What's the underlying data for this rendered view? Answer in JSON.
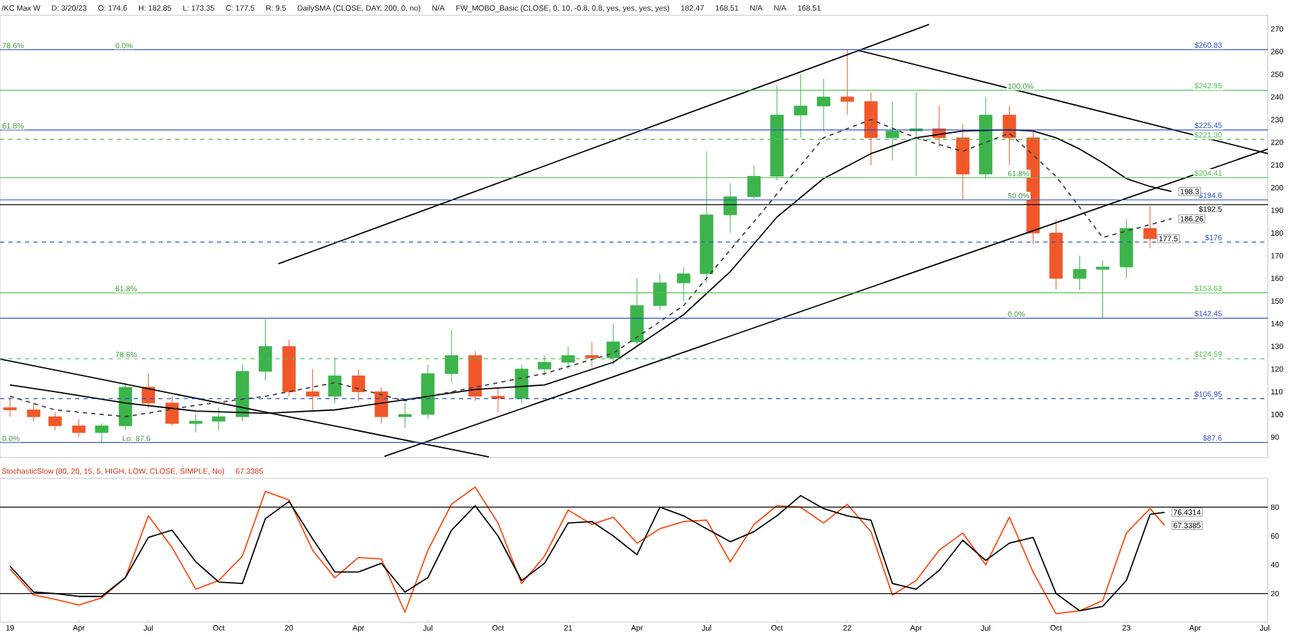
{
  "chart_data": [
    {
      "type": "candlestick",
      "title": "/KC Max W",
      "annotations": [
        "D: 3/20/23",
        "O: 174.6",
        "H: 182.85",
        "L: 173.35",
        "C: 177.5",
        "R: 9.5",
        "DailySMA (CLOSE, DAY, 200, 0, no)",
        "N/A",
        "FW_MOBO_Basic (CLOSE, 0, 10, -0.8, 0.8, yes, yes, yes, yes)",
        "182.47",
        "168.51",
        "N/A",
        "N/A",
        {
          "text": "78.6%",
          "x": "2018-12-20",
          "y": 260.83
        },
        {
          "text": "0.0%",
          "x": "2019-05-17",
          "y": 260.83
        },
        {
          "text": "61.8%",
          "x": "2018-12-20",
          "y": 225.45
        },
        {
          "text": "61.8%",
          "x": "2019-05-17",
          "y": 153.63
        },
        {
          "text": "78.6%",
          "x": "2019-05-17",
          "y": 124.59
        },
        {
          "text": "0.0%",
          "x": "2018-12-20",
          "y": 87.6
        },
        {
          "text": "Lo: 87.6",
          "x": "2019-05-26",
          "y": 87.6
        },
        {
          "text": "100.0%",
          "x": "2022-07-28",
          "y": 242.95
        },
        {
          "text": "61.8%",
          "x": "2022-07-28",
          "y": 204.41
        },
        {
          "text": "50.0%",
          "x": "2022-07-28",
          "y": 194.6
        },
        {
          "text": "0.0%",
          "x": "2022-07-28",
          "y": 142.45
        },
        {
          "text": "198.3",
          "x": "2023-03",
          "y": 198.3
        },
        {
          "text": "186.26",
          "x": "2023-03",
          "y": 186.26
        },
        {
          "text": "177.5",
          "x": "2023-02",
          "y": 177.5
        },
        "168.51"
      ],
      "x": [
        "2019-01",
        "2019-02",
        "2019-03",
        "2019-04",
        "2019-05",
        "2019-06",
        "2019-07",
        "2019-08",
        "2019-09",
        "2019-10",
        "2019-11",
        "2019-12",
        "2020-01",
        "2020-02",
        "2020-03",
        "2020-04",
        "2020-05",
        "2020-06",
        "2020-07",
        "2020-08",
        "2020-09",
        "2020-10",
        "2020-11",
        "2020-12",
        "2021-01",
        "2021-02",
        "2021-03",
        "2021-04",
        "2021-05",
        "2021-06",
        "2021-07",
        "2021-08",
        "2021-09",
        "2021-10",
        "2021-11",
        "2021-12",
        "2022-01",
        "2022-02",
        "2022-03",
        "2022-04",
        "2022-05",
        "2022-06",
        "2022-07",
        "2022-08",
        "2022-09",
        "2022-10",
        "2022-11",
        "2022-12",
        "2023-01",
        "2023-02"
      ],
      "ohlc": [
        [
          103,
          107,
          99,
          102
        ],
        [
          102,
          105,
          97,
          99
        ],
        [
          99,
          101,
          93,
          95
        ],
        [
          95,
          98,
          90,
          92
        ],
        [
          92,
          96,
          87.6,
          95
        ],
        [
          95,
          114,
          93,
          112
        ],
        [
          112,
          118,
          103,
          105
        ],
        [
          105,
          108,
          95,
          96
        ],
        [
          96,
          100,
          92,
          97
        ],
        [
          97,
          103,
          93,
          99
        ],
        [
          99,
          122,
          97,
          119
        ],
        [
          119,
          142,
          115,
          130
        ],
        [
          130,
          133,
          108,
          110
        ],
        [
          110,
          120,
          102,
          108
        ],
        [
          108,
          125,
          105,
          117
        ],
        [
          117,
          120,
          106,
          110
        ],
        [
          110,
          112,
          96,
          99
        ],
        [
          99,
          105,
          94,
          100
        ],
        [
          100,
          122,
          98,
          118
        ],
        [
          118,
          137,
          114,
          126
        ],
        [
          126,
          128,
          106,
          108
        ],
        [
          108,
          112,
          101,
          107
        ],
        [
          107,
          122,
          105,
          120
        ],
        [
          120,
          126,
          117,
          123
        ],
        [
          123,
          130,
          120,
          126
        ],
        [
          126,
          132,
          121,
          125
        ],
        [
          125,
          140,
          122,
          132
        ],
        [
          132,
          160,
          130,
          148
        ],
        [
          148,
          162,
          146,
          158
        ],
        [
          158,
          165,
          150,
          162
        ],
        [
          162,
          216,
          158,
          188
        ],
        [
          188,
          202,
          180,
          196
        ],
        [
          196,
          210,
          195,
          205
        ],
        [
          205,
          245,
          203,
          232
        ],
        [
          232,
          250,
          222,
          236
        ],
        [
          236,
          248,
          225,
          240
        ],
        [
          240,
          260.83,
          232,
          238
        ],
        [
          238,
          242,
          210,
          222
        ],
        [
          222,
          238,
          212,
          225
        ],
        [
          225,
          242,
          205,
          226
        ],
        [
          226,
          236,
          218,
          222
        ],
        [
          222,
          228,
          194.6,
          206
        ],
        [
          206,
          240,
          204,
          232
        ],
        [
          232,
          236,
          210,
          222
        ],
        [
          222,
          225,
          175,
          180
        ],
        [
          180,
          186,
          155,
          160
        ],
        [
          160,
          170,
          155,
          164
        ],
        [
          164,
          168,
          142.45,
          165
        ],
        [
          165,
          186,
          160,
          182
        ],
        [
          182,
          192,
          173.35,
          177.5
        ]
      ],
      "colors": [
        "#f0582a",
        "#f0582a",
        "#f0582a",
        "#f0582a",
        "#3cb44b",
        "#3cb44b",
        "#f0582a",
        "#f0582a",
        "#3cb44b",
        "#3cb44b",
        "#3cb44b",
        "#3cb44b",
        "#f0582a",
        "#f0582a",
        "#3cb44b",
        "#f0582a",
        "#f0582a",
        "#3cb44b",
        "#3cb44b",
        "#3cb44b",
        "#f0582a",
        "#f0582a",
        "#3cb44b",
        "#3cb44b",
        "#3cb44b",
        "#f0582a",
        "#3cb44b",
        "#3cb44b",
        "#3cb44b",
        "#3cb44b",
        "#3cb44b",
        "#3cb44b",
        "#3cb44b",
        "#3cb44b",
        "#3cb44b",
        "#3cb44b",
        "#f0582a",
        "#f0582a",
        "#3cb44b",
        "#3cb44b",
        "#f0582a",
        "#f0582a",
        "#3cb44b",
        "#f0582a",
        "#f0582a",
        "#f0582a",
        "#3cb44b",
        "#3cb44b",
        "#3cb44b",
        "#f0582a"
      ],
      "xlim": [
        "2018-12-19",
        "2023-07-05"
      ],
      "ylim": [
        81,
        276
      ],
      "yticks": [
        90,
        100,
        110,
        120,
        130,
        140,
        150,
        160,
        170,
        180,
        190,
        200,
        210,
        220,
        230,
        240,
        250,
        260,
        270
      ],
      "tick_labels": "y",
      "series": [
        {
          "type": "line",
          "color": "#000000",
          "x": [
            "2019-01",
            "2019-03",
            "2019-06",
            "2019-09",
            "2019-12",
            "2020-03",
            "2020-06",
            "2020-09",
            "2020-12",
            "2021-03",
            "2021-06",
            "2021-08",
            "2021-10",
            "2021-12",
            "2022-02",
            "2022-04",
            "2022-06",
            "2022-08",
            "2022-09",
            "2022-10",
            "2022-11",
            "2022-12",
            "2023-01",
            "2023-02",
            "2023-03"
          ],
          "values": [
            113,
            110,
            105,
            101.5,
            100.5,
            102,
            106.5,
            111,
            113,
            123,
            144,
            163,
            187,
            204,
            215,
            222,
            225,
            225.5,
            225,
            222,
            217,
            211,
            204,
            200.5,
            198.3
          ]
        },
        {
          "type": "line",
          "color": "#404040",
          "line_style": "dashed",
          "x": [
            "2019-01",
            "2019-03",
            "2019-06",
            "2019-09",
            "2019-12",
            "2020-03",
            "2020-06",
            "2020-09",
            "2020-12",
            "2021-03",
            "2021-06",
            "2021-09",
            "2021-12",
            "2022-02",
            "2022-04",
            "2022-06",
            "2022-08",
            "2022-10",
            "2022-12",
            "2023-03"
          ],
          "values": [
            108,
            102,
            99,
            104,
            108,
            114,
            106,
            112,
            118,
            127,
            148,
            185,
            222,
            230,
            222,
            216,
            224,
            205,
            178,
            186.26
          ]
        },
        {
          "type": "line",
          "color": "#000000",
          "x": [
            "2019-12-18",
            "2022-01-16",
            "2022-04-18"
          ],
          "values": [
            166.4,
            260.5,
            272
          ]
        },
        {
          "type": "line",
          "color": "#000000",
          "x": [
            "2020-05-05",
            "2023-07-05"
          ],
          "values": [
            81.5,
            217
          ]
        },
        {
          "type": "line",
          "color": "#000000",
          "x": [
            "2022-01-16",
            "2023-07-05"
          ],
          "values": [
            260.5,
            215
          ]
        },
        {
          "type": "line",
          "color": "#000000",
          "x": [
            "2018-12-19",
            "2020-09-19"
          ],
          "values": [
            124.4,
            81.3
          ]
        }
      ],
      "ref_lines": [
        {
          "axis": "y",
          "value": 260.83,
          "label": "$260.83",
          "color": "#2b4fc7"
        },
        {
          "axis": "y",
          "value": 242.95,
          "label": "$242.95",
          "color": "#4cbf4c"
        },
        {
          "axis": "y",
          "value": 225.45,
          "label": "$225.45",
          "color": "#2b4fc7"
        },
        {
          "axis": "y",
          "value": 221.3,
          "label": "$221.30",
          "color": "#4cbf4c",
          "line_style": "dashed"
        },
        {
          "axis": "y",
          "value": 204.41,
          "label": "$204.41",
          "color": "#4cbf4c"
        },
        {
          "axis": "y",
          "value": 194.6,
          "label": "$194.6",
          "color": "#2b4fc7"
        },
        {
          "axis": "y",
          "value": 192.5,
          "label": "$192.5",
          "color": "#000000"
        },
        {
          "axis": "y",
          "value": 176,
          "label": "$176",
          "color": "#2b4fc7",
          "line_style": "dashed"
        },
        {
          "axis": "y",
          "value": 153.63,
          "label": "$153.63",
          "color": "#4cbf4c"
        },
        {
          "axis": "y",
          "value": 142.45,
          "label": "$142.45",
          "color": "#2b4fc7"
        },
        {
          "axis": "y",
          "value": 124.59,
          "label": "$124.59",
          "color": "#4cbf4c",
          "line_style": "dashed"
        },
        {
          "axis": "y",
          "value": 106.95,
          "label": "$106.95",
          "color": "#2b4fc7",
          "line_style": "dashed"
        },
        {
          "axis": "y",
          "value": 87.6,
          "label": "$87.6",
          "color": "#2b4fc7"
        }
      ]
    },
    {
      "type": "line",
      "title": "StochasticSlow (80, 20, 15, 5, HIGH, LOW, CLOSE, SIMPLE, No)",
      "annotations": [
        "67.3385",
        {
          "text": "76.4314",
          "x": "2023-02-20",
          "y": 76.4314
        },
        {
          "text": "67.3385",
          "x": "2023-02-20",
          "y": 67.3385
        }
      ],
      "x": [
        "2019-01",
        "2019-02",
        "2019-03",
        "2019-04",
        "2019-05",
        "2019-06",
        "2019-07",
        "2019-08",
        "2019-09",
        "2019-10",
        "2019-11",
        "2019-12",
        "2020-01",
        "2020-02",
        "2020-03",
        "2020-04",
        "2020-05",
        "2020-06",
        "2020-07",
        "2020-08",
        "2020-09",
        "2020-10",
        "2020-11",
        "2020-12",
        "2021-01",
        "2021-02",
        "2021-03",
        "2021-04",
        "2021-05",
        "2021-06",
        "2021-07",
        "2021-08",
        "2021-09",
        "2021-10",
        "2021-11",
        "2021-12",
        "2022-01",
        "2022-02",
        "2022-03",
        "2022-04",
        "2022-05",
        "2022-06",
        "2022-07",
        "2022-08",
        "2022-09",
        "2022-10",
        "2022-11",
        "2022-12",
        "2023-01",
        "2023-02",
        "2023-02-20"
      ],
      "series": [
        {
          "color": "#ff4a12",
          "values": [
            37,
            19,
            16,
            12,
            17,
            31,
            74,
            52,
            23,
            29,
            46,
            91,
            85,
            50,
            31,
            45,
            44,
            7,
            50,
            82,
            94,
            69,
            27,
            46,
            78,
            68,
            73,
            55,
            65,
            70,
            71,
            42,
            68,
            81,
            80,
            69,
            82,
            63,
            19,
            29,
            50,
            62,
            40,
            73,
            35,
            6,
            8,
            15,
            62,
            79,
            67.3385
          ]
        },
        {
          "color": "#000000",
          "values": [
            39,
            21,
            20,
            18,
            18,
            31,
            59,
            64,
            42,
            28,
            27,
            72,
            84,
            58,
            35,
            35,
            41,
            21,
            31,
            64,
            81,
            60,
            29,
            41,
            69,
            70,
            60,
            47,
            80,
            74,
            65,
            56,
            63,
            74,
            88,
            79,
            74,
            71,
            27,
            23,
            36,
            57,
            43,
            55,
            59,
            20,
            8,
            11,
            29,
            75,
            76.4314
          ]
        }
      ],
      "xlim": [
        "2018-12-19",
        "2023-07-05"
      ],
      "ylim": [
        0,
        100
      ],
      "xticks": [
        {
          "value": "2019-01",
          "label": "19"
        },
        {
          "value": "2019-04",
          "label": "Apr"
        },
        {
          "value": "2019-07",
          "label": "Jul"
        },
        {
          "value": "2019-10",
          "label": "Oct"
        },
        {
          "value": "2020-01",
          "label": "20"
        },
        {
          "value": "2020-04",
          "label": "Apr"
        },
        {
          "value": "2020-07",
          "label": "Jul"
        },
        {
          "value": "2020-10",
          "label": "Oct"
        },
        {
          "value": "2021-01",
          "label": "21"
        },
        {
          "value": "2021-04",
          "label": "Apr"
        },
        {
          "value": "2021-07",
          "label": "Jul"
        },
        {
          "value": "2021-10",
          "label": "Oct"
        },
        {
          "value": "2022-01",
          "label": "22"
        },
        {
          "value": "2022-04",
          "label": "Apr"
        },
        {
          "value": "2022-07",
          "label": "Jul"
        },
        {
          "value": "2022-10",
          "label": "Oct"
        },
        {
          "value": "2023-01",
          "label": "23"
        },
        {
          "value": "2023-04",
          "label": "Apr"
        },
        {
          "value": "2023-07",
          "label": "Jul"
        }
      ],
      "yticks": [
        20,
        40,
        60,
        80
      ],
      "ref_lines": [
        {
          "axis": "y",
          "value": 80,
          "color": "#000000"
        },
        {
          "axis": "y",
          "value": 20,
          "color": "#000000"
        }
      ]
    }
  ]
}
